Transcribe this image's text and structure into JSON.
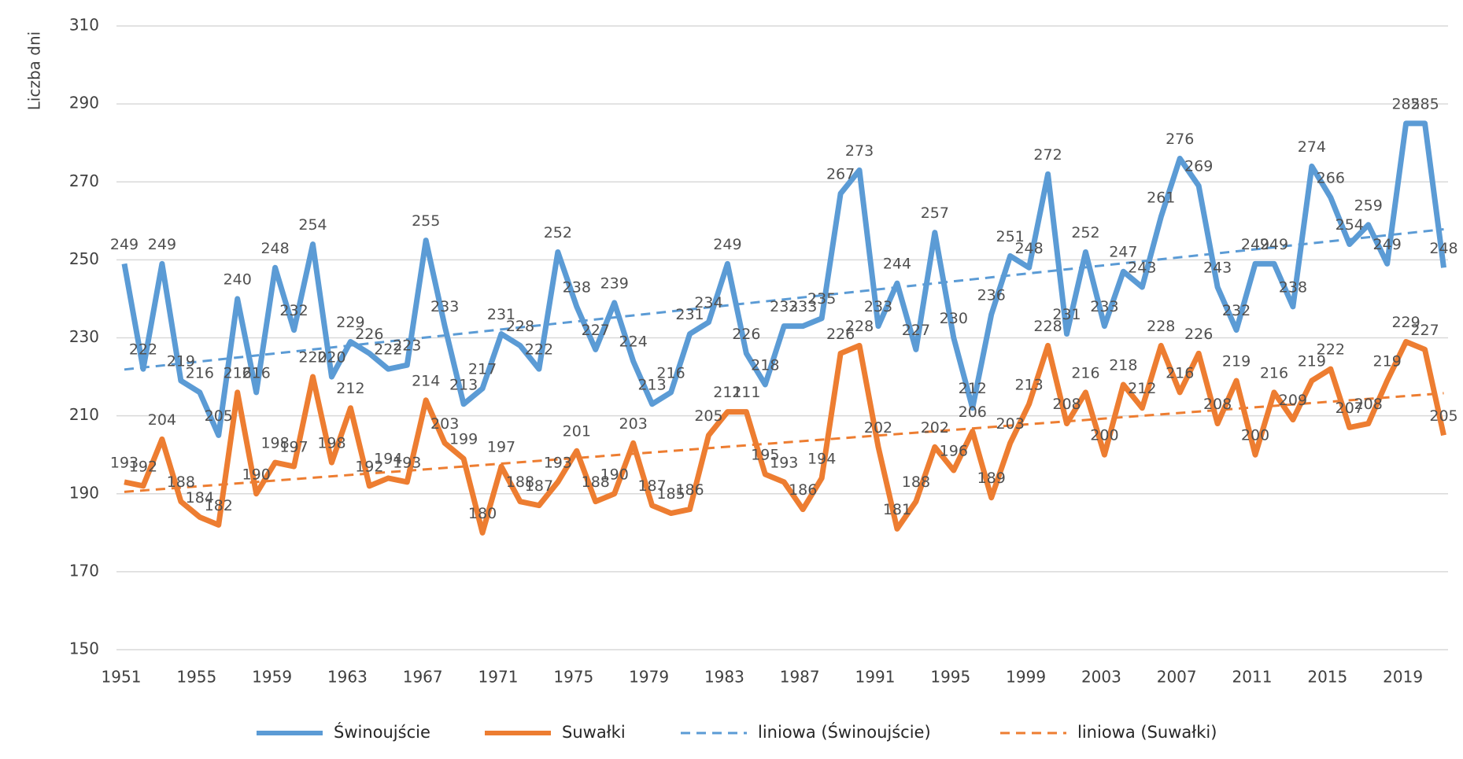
{
  "chart_data": {
    "type": "line",
    "y_label": "Liczba dni",
    "categories": [
      "1951",
      null,
      null,
      null,
      "1955",
      null,
      null,
      null,
      "1959",
      null,
      null,
      null,
      "1963",
      null,
      null,
      null,
      "1967",
      null,
      null,
      null,
      "1971",
      null,
      null,
      null,
      "1975",
      null,
      null,
      null,
      "1979",
      null,
      null,
      null,
      "1983",
      null,
      null,
      null,
      "1987",
      null,
      null,
      null,
      "1991",
      null,
      null,
      null,
      "1995",
      null,
      null,
      null,
      "1999",
      null,
      null,
      null,
      "2003",
      null,
      null,
      null,
      "2007",
      null,
      null,
      null,
      "2011",
      null,
      null,
      null,
      "2015",
      null,
      null,
      null,
      "2019",
      null,
      null
    ],
    "series": [
      {
        "name": "Świnoujście",
        "color": "#5b9bd5",
        "values": [
          249,
          222,
          249,
          219,
          216,
          205,
          240,
          216,
          248,
          232,
          254,
          220,
          229,
          226,
          222,
          223,
          255,
          233,
          213,
          217,
          231,
          228,
          222,
          252,
          238,
          227,
          239,
          224,
          213,
          216,
          231,
          234,
          249,
          226,
          218,
          233,
          233,
          235,
          267,
          273,
          233,
          244,
          227,
          257,
          230,
          212,
          236,
          251,
          248,
          272,
          231,
          252,
          233,
          247,
          243,
          261,
          276,
          269,
          243,
          232,
          249,
          249,
          238,
          274,
          266,
          254,
          259,
          249,
          285,
          285,
          248
        ],
        "trendline": {
          "name": "liniowa (Świnoujście)",
          "color": "#5b9bd5"
        }
      },
      {
        "name": "Suwałki",
        "color": "#ed7d31",
        "values": [
          193,
          192,
          204,
          188,
          184,
          182,
          216,
          190,
          198,
          197,
          220,
          198,
          212,
          192,
          194,
          193,
          214,
          203,
          199,
          180,
          197,
          188,
          187,
          193,
          201,
          188,
          190,
          203,
          187,
          185,
          186,
          205,
          211,
          211,
          195,
          193,
          186,
          194,
          226,
          228,
          202,
          181,
          188,
          202,
          196,
          206,
          189,
          203,
          213,
          228,
          208,
          216,
          200,
          218,
          212,
          228,
          216,
          226,
          208,
          219,
          200,
          216,
          209,
          219,
          222,
          207,
          208,
          219,
          229,
          227,
          205
        ],
        "trendline": {
          "name": "liniowa (Suwałki)",
          "color": "#ed7d31"
        }
      }
    ],
    "ylim": [
      150,
      310
    ],
    "yticks": [
      150,
      170,
      190,
      210,
      230,
      250,
      270,
      290,
      310
    ],
    "grid": true,
    "legend": "bottom"
  }
}
